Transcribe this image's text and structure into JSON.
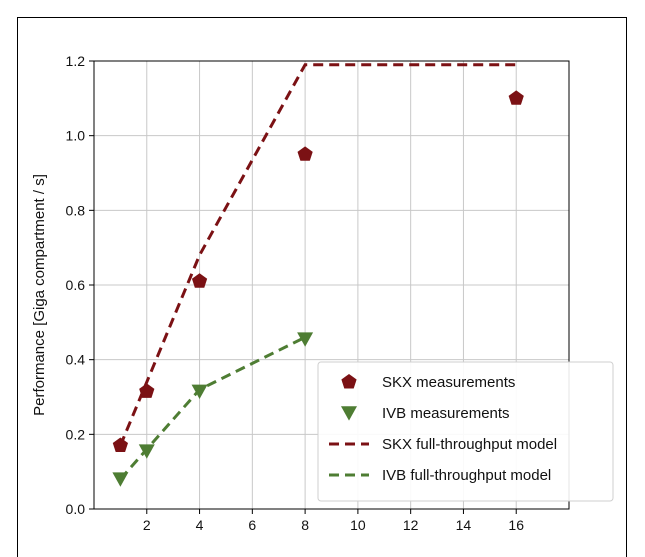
{
  "chart_data": {
    "type": "line",
    "xlabel": "",
    "ylabel": "Performance [Giga compartment / s]",
    "xlim": [
      0,
      18
    ],
    "ylim": [
      0,
      1.2
    ],
    "x_ticks": [
      2,
      4,
      6,
      8,
      10,
      12,
      14,
      16
    ],
    "y_ticks": [
      0.0,
      0.2,
      0.4,
      0.6,
      0.8,
      1.0,
      1.2
    ],
    "x_tick_labels": [
      "2",
      "4",
      "6",
      "8",
      "10",
      "12",
      "14",
      "16"
    ],
    "y_tick_labels": [
      "0.0",
      "0.2",
      "0.4",
      "0.6",
      "0.8",
      "1.0",
      "1.2"
    ],
    "grid": true,
    "legend_position": "bottom-right",
    "series": [
      {
        "name": "SKX measurements",
        "kind": "scatter",
        "marker": "pentagon",
        "color": "#7b1114",
        "x": [
          1,
          2,
          4,
          8,
          16
        ],
        "y": [
          0.17,
          0.315,
          0.61,
          0.95,
          1.1
        ]
      },
      {
        "name": "IVB measurements",
        "kind": "scatter",
        "marker": "triangle-down",
        "color": "#4e7d33",
        "x": [
          1,
          2,
          4,
          8
        ],
        "y": [
          0.08,
          0.155,
          0.315,
          0.455
        ]
      },
      {
        "name": "SKX full-throughput model",
        "kind": "dashed-line",
        "color": "#7b1114",
        "x": [
          1,
          2,
          4,
          8,
          16
        ],
        "y": [
          0.17,
          0.34,
          0.68,
          1.19,
          1.19
        ]
      },
      {
        "name": "IVB full-throughput model",
        "kind": "dashed-line",
        "color": "#4e7d33",
        "x": [
          1,
          2,
          4,
          8
        ],
        "y": [
          0.08,
          0.16,
          0.32,
          0.46
        ]
      }
    ]
  }
}
